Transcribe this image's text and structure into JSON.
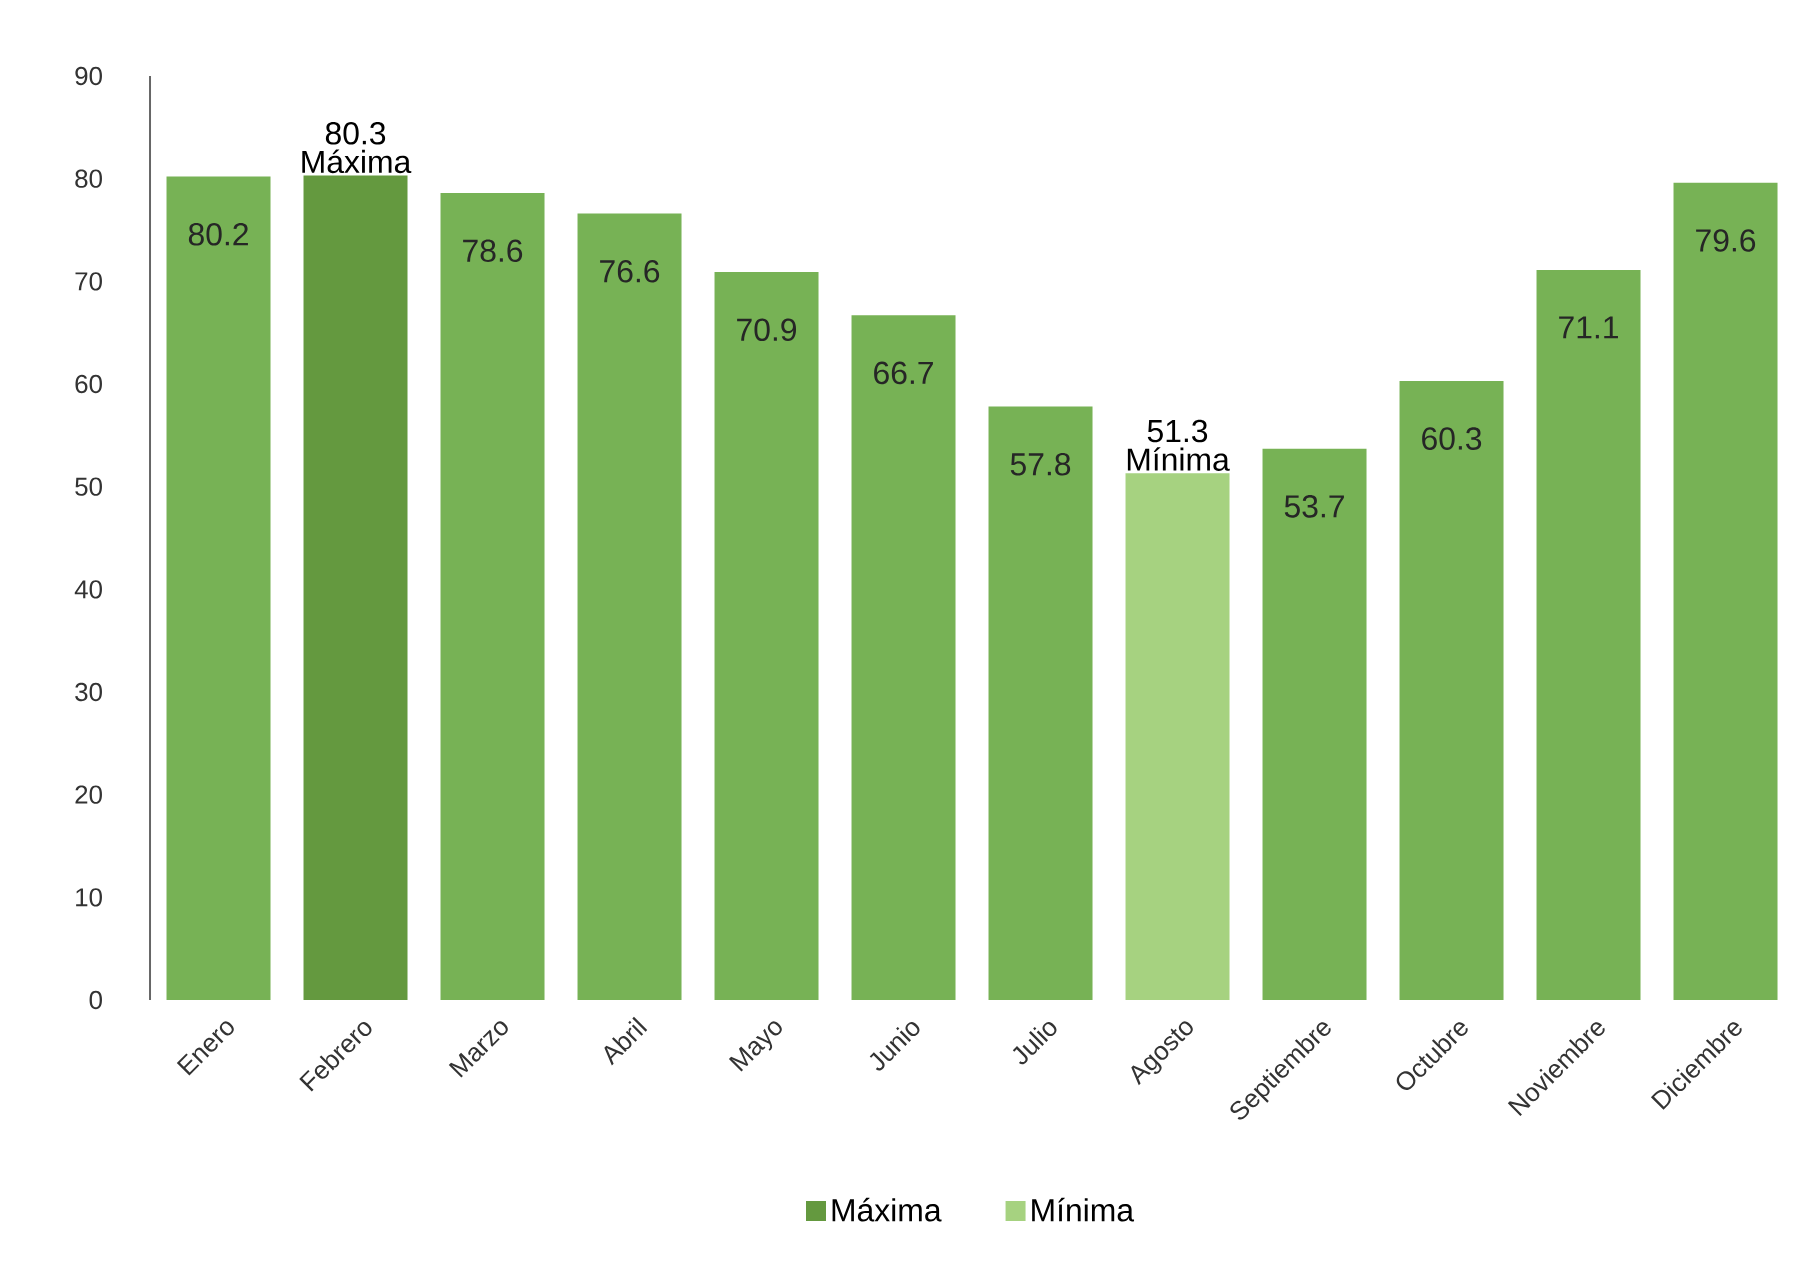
{
  "chart_data": {
    "type": "bar",
    "categories": [
      "Enero",
      "Febrero",
      "Marzo",
      "Abril",
      "Mayo",
      "Junio",
      "Julio",
      "Agosto",
      "Septiembre",
      "Octubre",
      "Noviembre",
      "Diciembre"
    ],
    "series": [
      {
        "color": "#77b255",
        "values": [
          80.2,
          null,
          78.6,
          76.6,
          70.9,
          66.7,
          57.8,
          null,
          53.7,
          60.3,
          71.1,
          79.6
        ],
        "value_labels": [
          "80.2",
          null,
          "78.6",
          "76.6",
          "70.9",
          "66.7",
          "57.8",
          null,
          "53.7",
          "60.3",
          "71.1",
          "79.6"
        ]
      },
      {
        "name": "Máxima",
        "color": "#64993f",
        "values": [
          null,
          80.3,
          null,
          null,
          null,
          null,
          null,
          null,
          null,
          null,
          null,
          null
        ],
        "value_labels": [
          null,
          "80.3",
          null,
          null,
          null,
          null,
          null,
          null,
          null,
          null,
          null,
          null
        ]
      },
      {
        "name": "Mínima",
        "color": "#a6d280",
        "values": [
          null,
          null,
          null,
          null,
          null,
          null,
          null,
          51.3,
          null,
          null,
          null,
          null
        ],
        "value_labels": [
          null,
          null,
          null,
          null,
          null,
          null,
          null,
          "51.3",
          null,
          null,
          null,
          null
        ]
      }
    ],
    "annotations": [
      {
        "text": "Máxima",
        "x": "Febrero",
        "y": 80.3
      },
      {
        "text": "Mínima",
        "x": "Agosto",
        "y": 51.3
      }
    ],
    "ylim": [
      0,
      90
    ],
    "yticks": [
      0,
      10,
      20,
      30,
      40,
      50,
      60,
      70,
      80,
      90
    ],
    "grid": false,
    "legend": "bottom"
  }
}
